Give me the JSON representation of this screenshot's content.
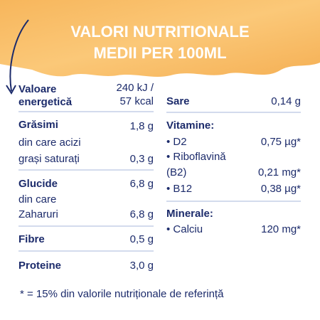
{
  "header": {
    "title": [
      "VALORI NUTRITIONALE",
      "MEDII PER 100ML"
    ]
  },
  "left": {
    "energy": {
      "label": [
        "Valoare",
        "energetică"
      ],
      "value": [
        "240 kJ /",
        "57 kcal"
      ]
    },
    "fat": {
      "label": "Grăsimi",
      "value": "1,8 g",
      "sub_label": [
        "din care acizi",
        "grași saturați"
      ],
      "sub_value": "0,3 g"
    },
    "carbs": {
      "label": "Glucide",
      "value": "6,8 g",
      "sub_label": [
        "din care",
        "Zaharuri"
      ],
      "sub_value": "6,8 g"
    },
    "fibre": {
      "label": "Fibre",
      "value": "0,5 g"
    },
    "protein": {
      "label": "Proteine",
      "value": "3,0 g"
    }
  },
  "right": {
    "salt": {
      "label": "Sare",
      "value": "0,14 g"
    },
    "vitamins": {
      "label": "Vitamine:",
      "items": [
        {
          "label": [
            "• D2"
          ],
          "value": "0,75 µg*"
        },
        {
          "label": [
            "• Riboflavină",
            "(B2)"
          ],
          "value": "0,21 mg*"
        },
        {
          "label": [
            "• B12"
          ],
          "value": "0,38 µg*"
        }
      ]
    },
    "minerals": {
      "label": "Minerale:",
      "items": [
        {
          "label": [
            "• Calciu"
          ],
          "value": "120 mg*"
        }
      ]
    }
  },
  "footnote": "* = 15% din valorile nutriționale de referință"
}
